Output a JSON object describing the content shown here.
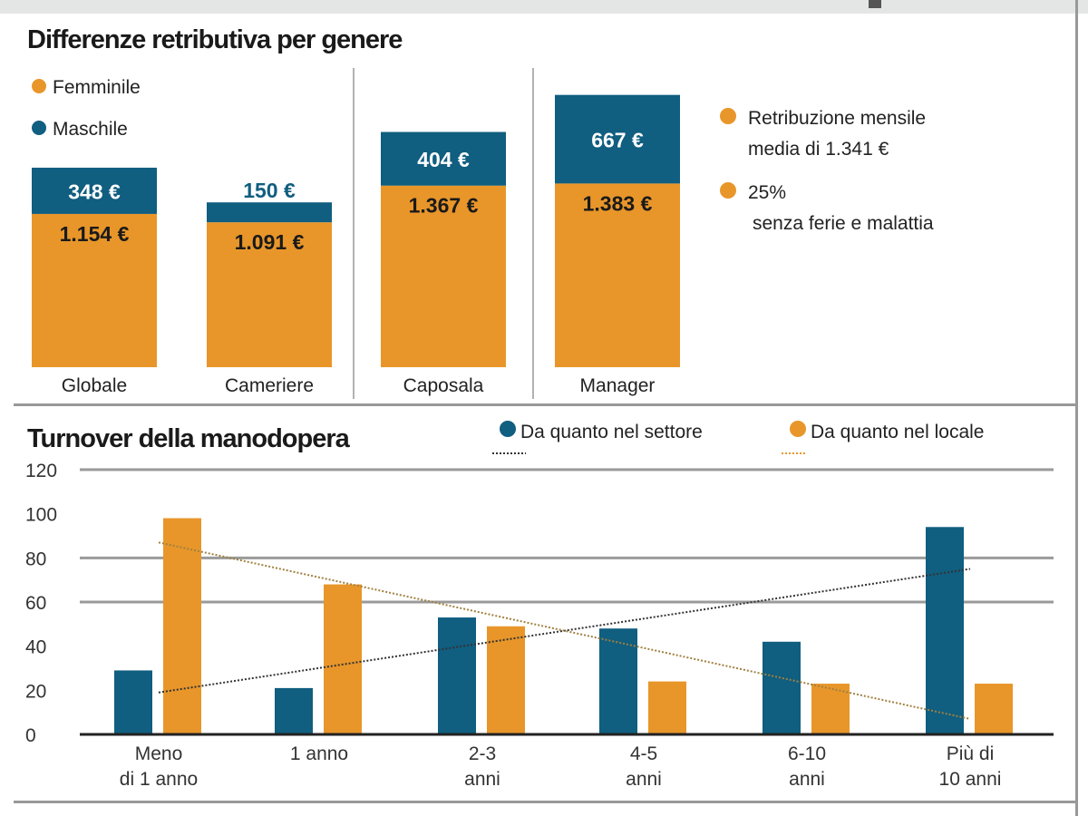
{
  "colors": {
    "female": "#e8962a",
    "male": "#105e80",
    "grid": "#9a9a9a",
    "band": "#e4e6e6"
  },
  "chart_data": [
    {
      "type": "bar",
      "stacked": true,
      "title": "Differenze retributiva per genere",
      "categories": [
        "Globale",
        "Cameriere",
        "Caposala",
        "Manager"
      ],
      "series": [
        {
          "name": "Femminile",
          "values": [
            1154,
            1091,
            1367,
            1383
          ],
          "labels": [
            "1.154 €",
            "1.091 €",
            "1.367 €",
            "1.383 €"
          ]
        },
        {
          "name": "Maschile",
          "values": [
            348,
            150,
            404,
            667
          ],
          "labels": [
            "348 €",
            "150 €",
            "404 €",
            "667 €"
          ]
        }
      ],
      "legend": [
        "Femminile",
        "Maschile"
      ],
      "notes": [
        "Retribuzione mensile",
        "media di 1.341 €",
        "25%",
        "senza ferie e malattia"
      ]
    },
    {
      "type": "bar",
      "title": "Turnover della manodopera",
      "categories": [
        [
          "Meno",
          "di 1 anno"
        ],
        [
          "1 anno",
          ""
        ],
        [
          "2-3",
          "anni"
        ],
        [
          "4-5",
          "anni"
        ],
        [
          "6-10",
          "anni"
        ],
        [
          "Più di",
          "10 anni"
        ]
      ],
      "series": [
        {
          "name": "Da quanto nel settore",
          "values": [
            29,
            21,
            53,
            48,
            42,
            94
          ],
          "trendline": [
            19,
            75
          ]
        },
        {
          "name": "Da quanto nel locale",
          "values": [
            98,
            68,
            49,
            24,
            23,
            23
          ],
          "trendline": [
            87,
            7
          ]
        }
      ],
      "ylim": [
        0,
        120
      ],
      "yticks": [
        "0",
        "20",
        "40",
        "60",
        "80",
        "100",
        "120"
      ],
      "gridlines": [
        60,
        80,
        120
      ],
      "legend_placement": "top-right"
    }
  ]
}
